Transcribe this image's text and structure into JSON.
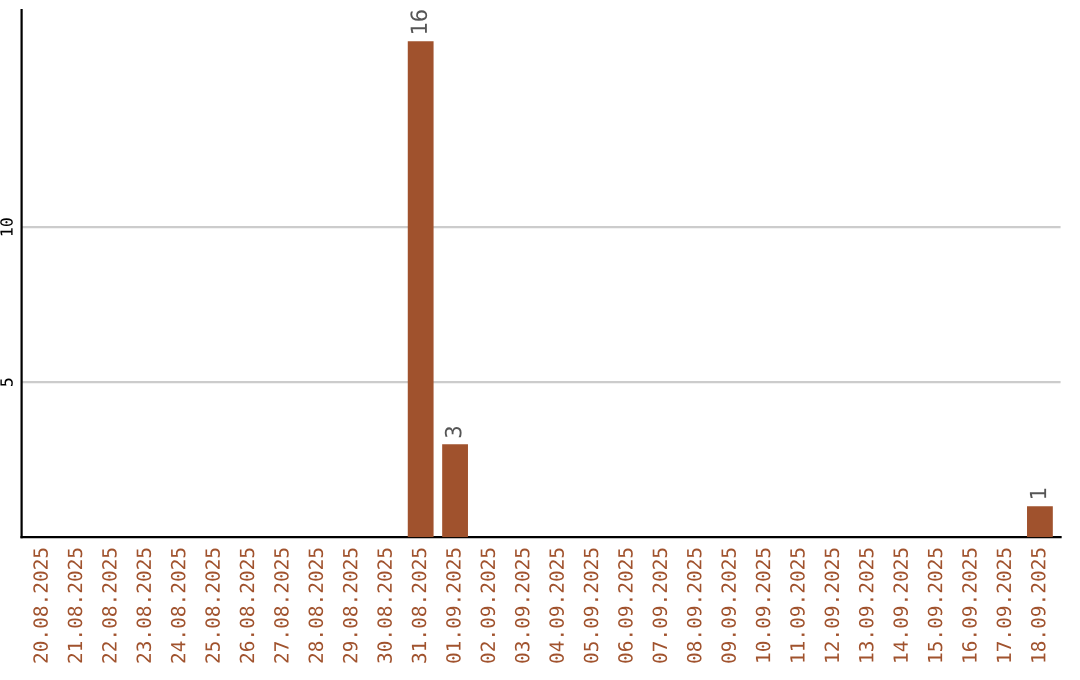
{
  "chart_data": {
    "type": "bar",
    "categories": [
      "20.08.2025",
      "21.08.2025",
      "22.08.2025",
      "23.08.2025",
      "24.08.2025",
      "25.08.2025",
      "26.08.2025",
      "27.08.2025",
      "28.08.2025",
      "29.08.2025",
      "30.08.2025",
      "31.08.2025",
      "01.09.2025",
      "02.09.2025",
      "03.09.2025",
      "04.09.2025",
      "05.09.2025",
      "06.09.2025",
      "07.09.2025",
      "08.09.2025",
      "09.09.2025",
      "10.09.2025",
      "11.09.2025",
      "12.09.2025",
      "13.09.2025",
      "14.09.2025",
      "15.09.2025",
      "16.09.2025",
      "17.09.2025",
      "18.09.2025"
    ],
    "values": [
      0,
      0,
      0,
      0,
      0,
      0,
      0,
      0,
      0,
      0,
      0,
      16,
      3,
      0,
      0,
      0,
      0,
      0,
      0,
      0,
      0,
      0,
      0,
      0,
      0,
      0,
      0,
      0,
      0,
      1
    ],
    "value_labels": [
      null,
      null,
      null,
      null,
      null,
      null,
      null,
      null,
      null,
      null,
      null,
      "16",
      "3",
      null,
      null,
      null,
      null,
      null,
      null,
      null,
      null,
      null,
      null,
      null,
      null,
      null,
      null,
      null,
      null,
      "1"
    ],
    "color": "#a0522d",
    "ylim": [
      0,
      17
    ],
    "yticks": [
      5,
      10
    ],
    "grid": "y"
  }
}
